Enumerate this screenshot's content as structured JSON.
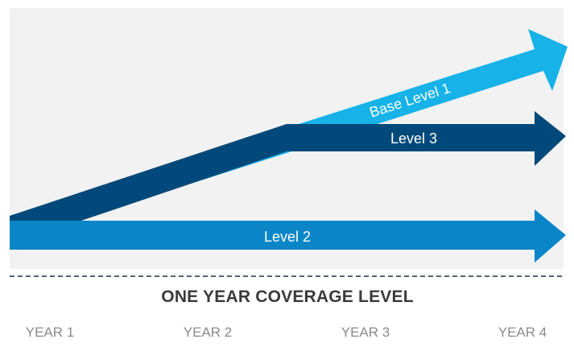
{
  "colors": {
    "panel": "#f2f2f2",
    "base_level_1": "#16b2e8",
    "level_3": "#00497a",
    "level_2": "#0a86c8",
    "divider": "#5a6270",
    "title": "#3a3a3a",
    "year": "#8a8a8a"
  },
  "arrows": {
    "base_level_1": {
      "label": "Base Level 1"
    },
    "level_3": {
      "label": "Level 3"
    },
    "level_2": {
      "label": "Level 2"
    }
  },
  "section_title": "ONE YEAR COVERAGE LEVEL",
  "years": [
    "YEAR 1",
    "YEAR 2",
    "YEAR 3",
    "YEAR 4"
  ]
}
